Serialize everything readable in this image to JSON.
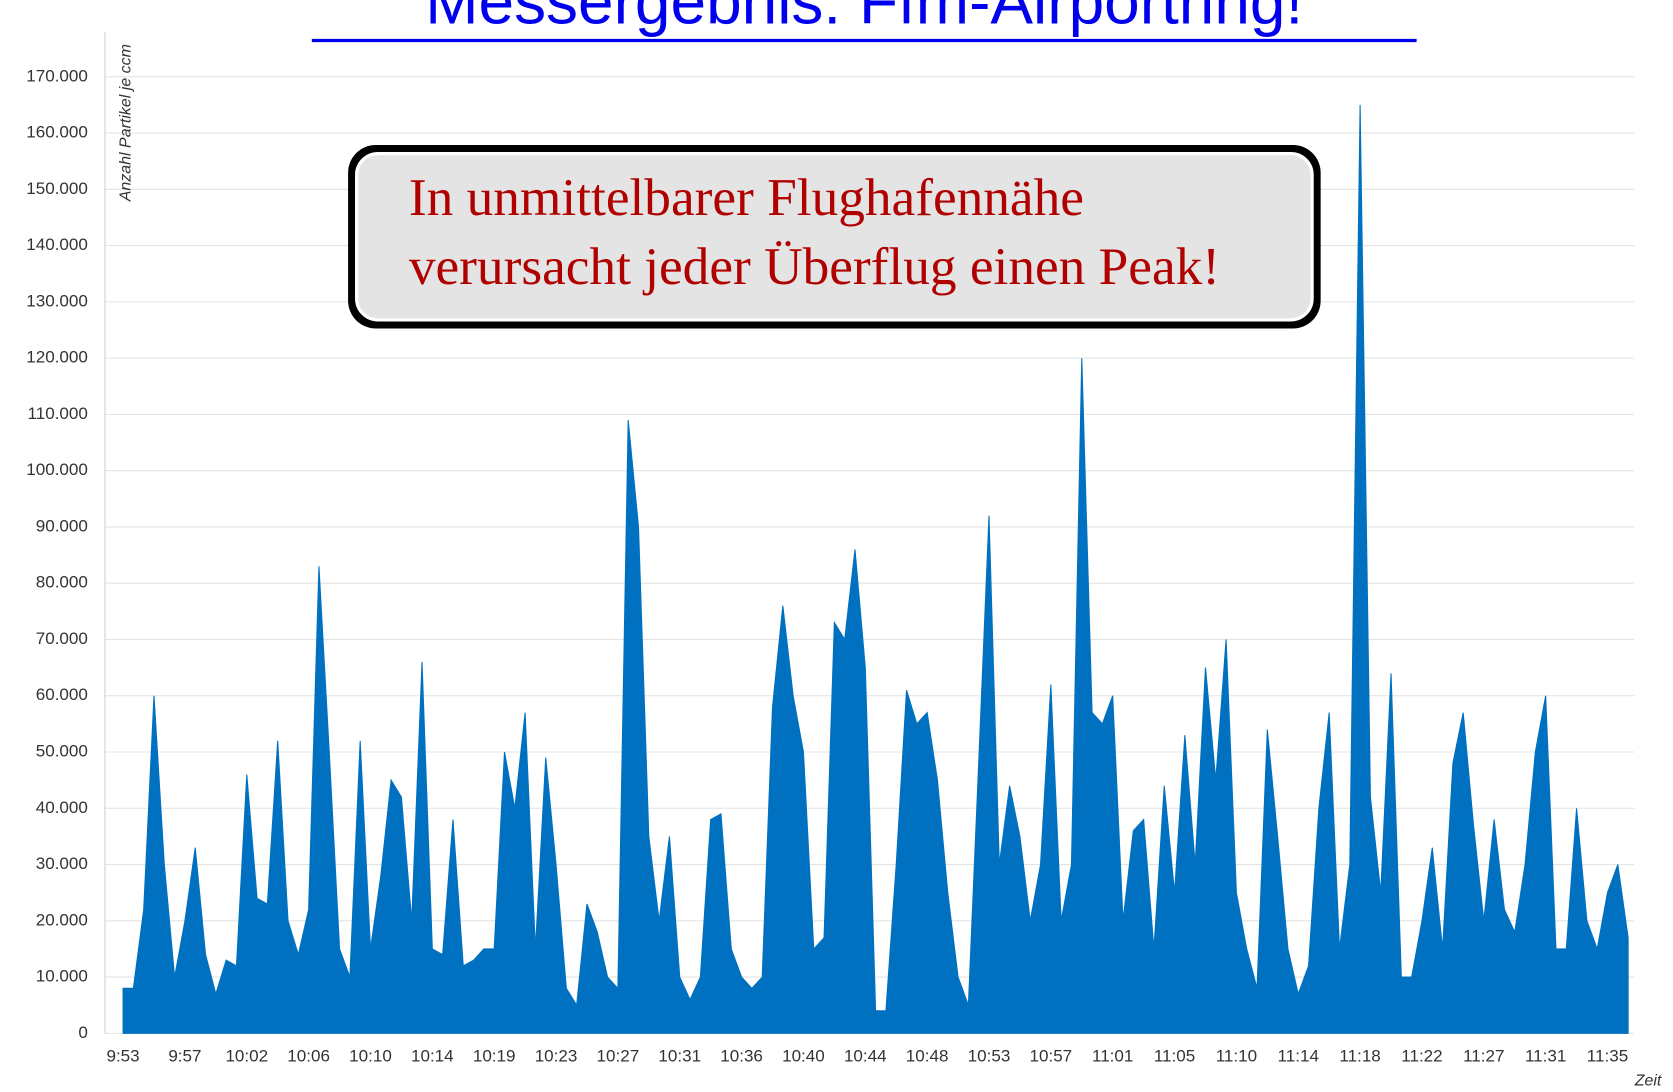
{
  "chart_data": {
    "type": "area",
    "title": "Messergebnis: Ffm-Airportring!",
    "annotation": [
      "In unmittelbarer Flughafennähe",
      "verursacht jeder Überflug einen Peak!"
    ],
    "y_label": "Anzahl Partikel je ccm",
    "x_label": "Zeit",
    "color": "#0070c0",
    "grid": true,
    "ylim": [
      0,
      170000
    ],
    "yticks": [
      0,
      {
        "value": 10000,
        "label": "10.000"
      },
      {
        "value": 20000,
        "label": "20.000"
      },
      {
        "value": 30000,
        "label": "30.000"
      },
      {
        "value": 40000,
        "label": "40.000"
      },
      {
        "value": 50000,
        "label": "50.000"
      },
      {
        "value": 60000,
        "label": "60.000"
      },
      {
        "value": 70000,
        "label": "70.000"
      },
      {
        "value": 80000,
        "label": "80.000"
      },
      {
        "value": 90000,
        "label": "90.000"
      },
      {
        "value": 100000,
        "label": "100.000"
      },
      {
        "value": 110000,
        "label": "110.000"
      },
      {
        "value": 120000,
        "label": "120.000"
      },
      {
        "value": 130000,
        "label": "130.000"
      },
      {
        "value": 140000,
        "label": "140.000"
      },
      {
        "value": 150000,
        "label": "150.000"
      },
      {
        "value": 160000,
        "label": "160.000"
      },
      {
        "value": 170000,
        "label": "170.000"
      }
    ],
    "categories": [
      "9:53",
      null,
      null,
      null,
      null,
      null,
      "9:57",
      null,
      null,
      null,
      null,
      null,
      "10:02",
      null,
      null,
      null,
      null,
      null,
      "10:06",
      null,
      null,
      null,
      null,
      null,
      "10:10",
      null,
      null,
      null,
      null,
      null,
      "10:14",
      null,
      null,
      null,
      null,
      null,
      "10:19",
      null,
      null,
      null,
      null,
      null,
      "10:23",
      null,
      null,
      null,
      null,
      null,
      "10:27",
      null,
      null,
      null,
      null,
      null,
      "10:31",
      null,
      null,
      null,
      null,
      null,
      "10:36",
      null,
      null,
      null,
      null,
      null,
      "10:40",
      null,
      null,
      null,
      null,
      null,
      "10:44",
      null,
      null,
      null,
      null,
      null,
      "10:48",
      null,
      null,
      null,
      null,
      null,
      "10:53",
      null,
      null,
      null,
      null,
      null,
      "10:57",
      null,
      null,
      null,
      null,
      null,
      "11:01",
      null,
      null,
      null,
      null,
      null,
      "11:05",
      null,
      null,
      null,
      null,
      null,
      "11:10",
      null,
      null,
      null,
      null,
      null,
      "11:14",
      null,
      null,
      null,
      null,
      null,
      "11:18",
      null,
      null,
      null,
      null,
      null,
      "11:22",
      null,
      null,
      null,
      null,
      null,
      "11:27",
      null,
      null,
      null,
      null,
      null,
      "11:31",
      null,
      null,
      null,
      null,
      null,
      "11:35",
      null,
      null
    ],
    "values": [
      8000,
      8000,
      22000,
      60000,
      30000,
      10000,
      20000,
      33000,
      14000,
      7000,
      13000,
      12000,
      46000,
      24000,
      23000,
      52000,
      20000,
      14000,
      22000,
      83000,
      50000,
      15000,
      10000,
      52000,
      15000,
      28000,
      45000,
      42000,
      20000,
      66000,
      15000,
      14000,
      38000,
      12000,
      13000,
      15000,
      15000,
      50000,
      40000,
      57000,
      15000,
      49000,
      30000,
      8000,
      5000,
      23000,
      18000,
      10000,
      8000,
      109000,
      90000,
      35000,
      20000,
      35000,
      10000,
      6000,
      10000,
      38000,
      39000,
      15000,
      10000,
      8000,
      10000,
      58000,
      76000,
      60000,
      50000,
      15000,
      17000,
      73000,
      70000,
      86000,
      65000,
      4000,
      4000,
      30000,
      61000,
      55000,
      57000,
      45000,
      25000,
      10000,
      5000,
      48000,
      92000,
      30000,
      44000,
      35000,
      20000,
      30000,
      62000,
      20000,
      30000,
      120000,
      57000,
      55000,
      60000,
      20000,
      36000,
      38000,
      15000,
      44000,
      25000,
      53000,
      30000,
      65000,
      45000,
      70000,
      25000,
      15000,
      8000,
      54000,
      35000,
      15000,
      7000,
      12000,
      40000,
      57000,
      15000,
      30000,
      165000,
      42000,
      25000,
      64000,
      10000,
      10000,
      20000,
      33000,
      15000,
      48000,
      57000,
      37000,
      20000,
      38000,
      22000,
      18000,
      30000,
      50000,
      60000,
      15000,
      15000,
      40000,
      20000,
      15000,
      25000,
      30000,
      17000
    ]
  }
}
